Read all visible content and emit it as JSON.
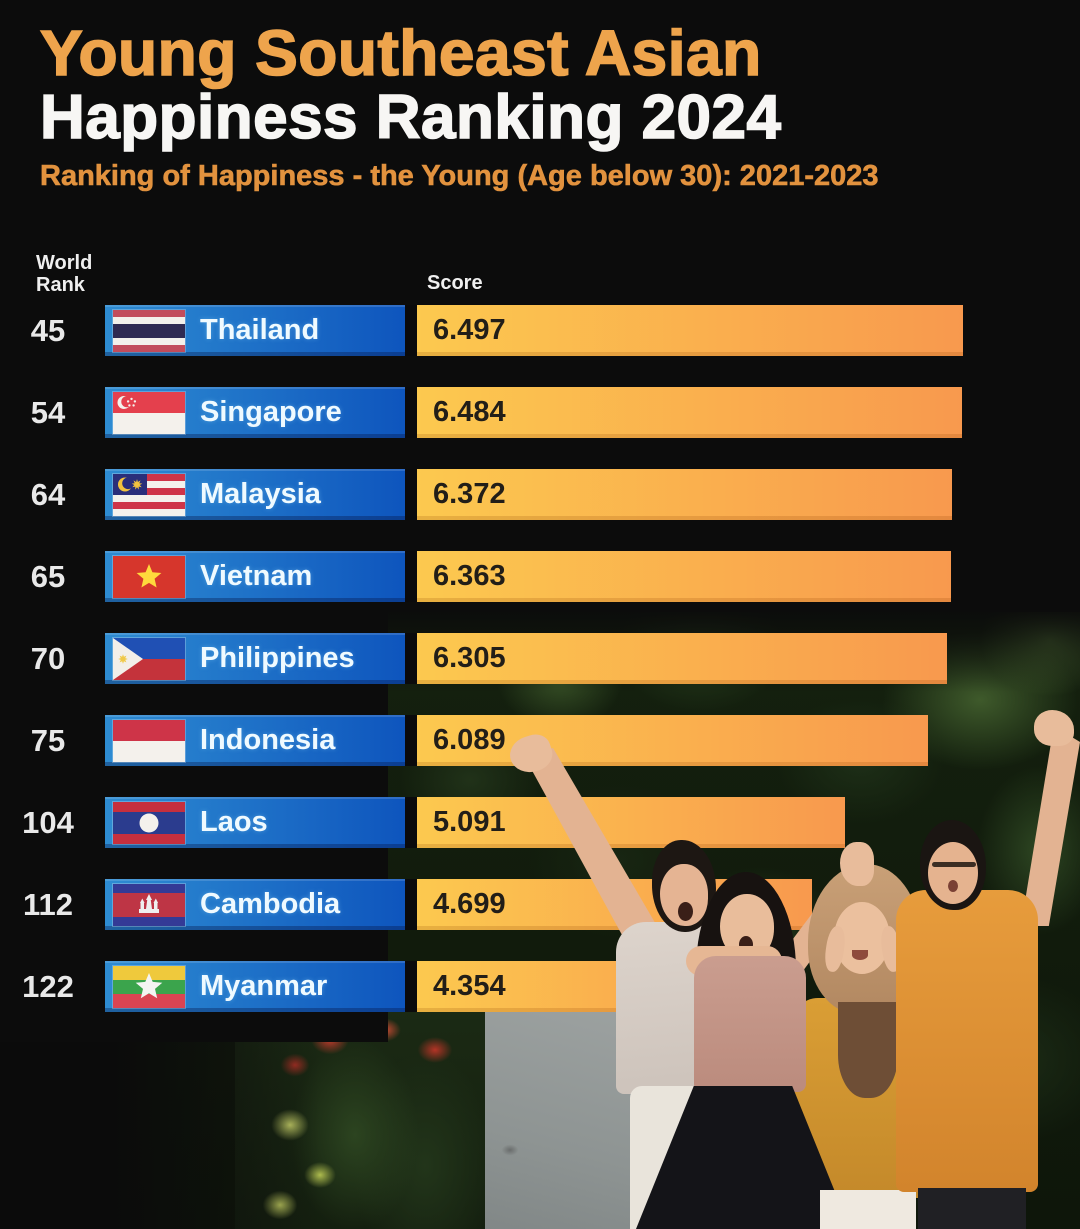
{
  "header": {
    "title_line1": "Young Southeast Asian",
    "title_line2": "Happiness Ranking 2024",
    "subtitle": "Ranking of Happiness - the Young (Age below 30): 2021-2023"
  },
  "columns": {
    "rank_label": "World Rank",
    "score_label": "Score"
  },
  "rows": [
    {
      "rank": "45",
      "country": "Thailand",
      "score": "6.497",
      "flag": "th",
      "flag_icon": "thailand-flag-icon"
    },
    {
      "rank": "54",
      "country": "Singapore",
      "score": "6.484",
      "flag": "sg",
      "flag_icon": "singapore-flag-icon"
    },
    {
      "rank": "64",
      "country": "Malaysia",
      "score": "6.372",
      "flag": "my",
      "flag_icon": "malaysia-flag-icon"
    },
    {
      "rank": "65",
      "country": "Vietnam",
      "score": "6.363",
      "flag": "vn",
      "flag_icon": "vietnam-flag-icon"
    },
    {
      "rank": "70",
      "country": "Philippines",
      "score": "6.305",
      "flag": "ph",
      "flag_icon": "philippines-flag-icon"
    },
    {
      "rank": "75",
      "country": "Indonesia",
      "score": "6.089",
      "flag": "id",
      "flag_icon": "indonesia-flag-icon"
    },
    {
      "rank": "104",
      "country": "Laos",
      "score": "5.091",
      "flag": "la",
      "flag_icon": "laos-flag-icon"
    },
    {
      "rank": "112",
      "country": "Cambodia",
      "score": "4.699",
      "flag": "kh",
      "flag_icon": "cambodia-flag-icon"
    },
    {
      "rank": "122",
      "country": "Myanmar",
      "score": "4.354",
      "flag": "mm",
      "flag_icon": "myanmar-flag-icon"
    }
  ],
  "chart_data": {
    "type": "bar",
    "orientation": "horizontal",
    "title": "Young Southeast Asian Happiness Ranking 2024",
    "subtitle": "Ranking of Happiness - the Young (Age below 30): 2021-2023",
    "categories": [
      "Thailand",
      "Singapore",
      "Malaysia",
      "Vietnam",
      "Philippines",
      "Indonesia",
      "Laos",
      "Cambodia",
      "Myanmar"
    ],
    "values": [
      6.497,
      6.484,
      6.372,
      6.363,
      6.305,
      6.089,
      5.091,
      4.699,
      4.354
    ],
    "world_ranks": [
      45,
      54,
      64,
      65,
      70,
      75,
      104,
      112,
      122
    ],
    "value_axis_label": "Score",
    "category_axis_label": "World Rank",
    "xlim": [
      0,
      6.6
    ],
    "grid": false,
    "legend": false
  },
  "colors": {
    "background": "#0C0C0C",
    "title_orange": "#EEA44C",
    "subtitle_orange": "#E2923E",
    "bar_blue_left": "#2E8CD2",
    "bar_blue_right": "#0E55BD",
    "bar_gold_left": "#FCC94F",
    "bar_gold_right": "#F8994E",
    "score_text": "#221E18"
  },
  "photo": {
    "description": "Four happy young people celebrating on a garden path"
  }
}
